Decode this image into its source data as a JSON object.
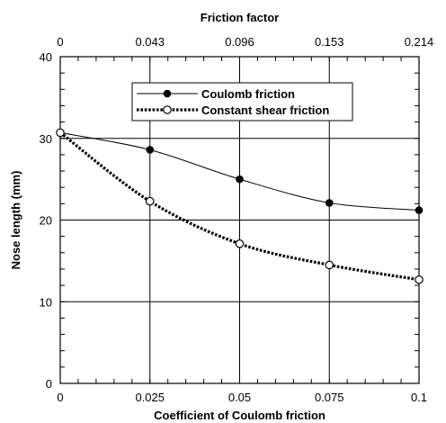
{
  "chart_data": {
    "type": "line",
    "title": "",
    "xlabel": "Coefficient of Coulomb friction",
    "ylabel": "Nose length (mm)",
    "top_xlabel": "Friction factor",
    "xlim": [
      0,
      0.1
    ],
    "ylim": [
      0,
      40
    ],
    "x_ticks": [
      0,
      0.025,
      0.05,
      0.075,
      0.1
    ],
    "x_tick_labels": [
      "0",
      "0.025",
      "0.05",
      "0.075",
      "0.1"
    ],
    "top_tick_labels": [
      "0",
      "0.043",
      "0.096",
      "0.153",
      "0.214"
    ],
    "y_ticks": [
      0,
      10,
      20,
      30,
      40
    ],
    "y_tick_labels": [
      "0",
      "10",
      "20",
      "30",
      "40"
    ],
    "grid": true,
    "legend_position": "top-center",
    "series": [
      {
        "name": "Coulomb friction",
        "style": "thin solid line, filled circle markers",
        "color": "#000000",
        "x": [
          0,
          0.025,
          0.05,
          0.075,
          0.1
        ],
        "y": [
          30.7,
          28.6,
          25.0,
          22.1,
          21.2
        ]
      },
      {
        "name": "Constant shear friction",
        "style": "thick dotted line, open circle markers",
        "color": "#000000",
        "x": [
          0,
          0.025,
          0.05,
          0.075,
          0.1
        ],
        "y": [
          30.7,
          22.3,
          17.1,
          14.5,
          12.7
        ]
      }
    ]
  }
}
